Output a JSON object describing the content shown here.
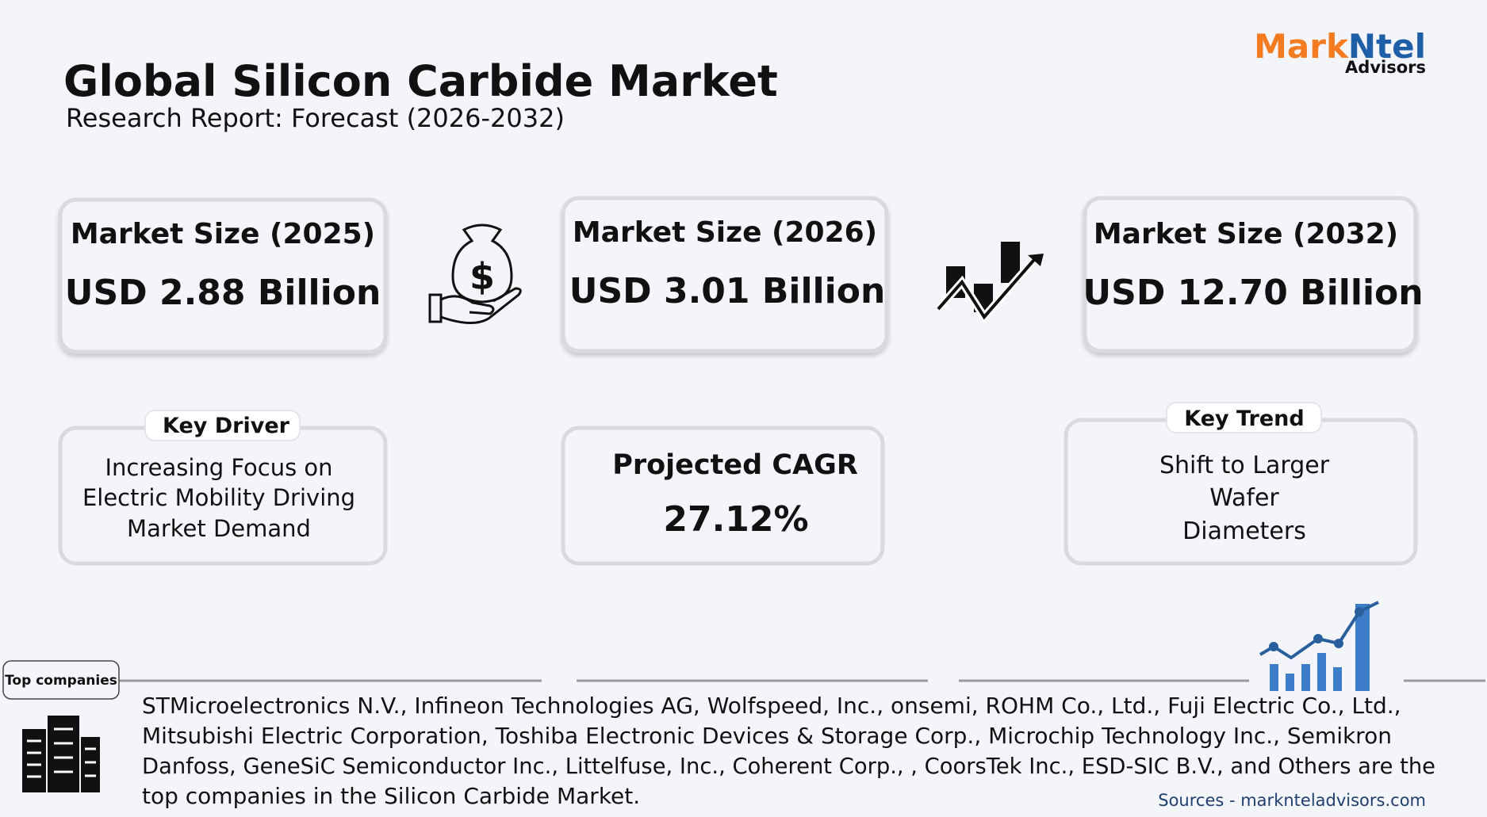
{
  "header": {
    "title": "Global Silicon Carbide Market",
    "subtitle": "Research Report: Forecast (2026-2032)"
  },
  "logo": {
    "brand_first": "Mark",
    "brand_second": "Ntel",
    "tagline": "Advisors"
  },
  "cards": [
    {
      "label": "Market Size (2025)",
      "value": "USD 2.88 Billion"
    },
    {
      "label": "Market Size (2026)",
      "value": "USD 3.01 Billion"
    },
    {
      "label": "Market Size (2032)",
      "value": "USD 12.70 Billion"
    }
  ],
  "key_driver": {
    "label": "Key Driver",
    "lines": [
      "Increasing Focus on",
      "Electric Mobility Driving",
      "Market Demand"
    ]
  },
  "cagr": {
    "label": "Projected CAGR",
    "value": "27.12%"
  },
  "key_trend": {
    "label": "Key Trend",
    "lines": [
      "Shift to Larger",
      "Wafer",
      "Diameters"
    ]
  },
  "top_companies": {
    "label": "Top companies",
    "lines": [
      "STMicroelectronics N.V., Infineon Technologies AG, Wolfspeed, Inc., onsemi, ROHM Co., Ltd., Fuji Electric Co., Ltd.,",
      "Mitsubishi Electric Corporation, Toshiba Electronic Devices & Storage Corp., Microchip Technology Inc., Semikron",
      "Danfoss, GeneSiC Semiconductor Inc., Littelfuse, Inc., Coherent Corp., , CoorsTek Inc., ESD-SIC B.V., and Others are the",
      "top companies in the Silicon Carbide Market."
    ]
  },
  "source": "Sources - marknteladvisors.com"
}
